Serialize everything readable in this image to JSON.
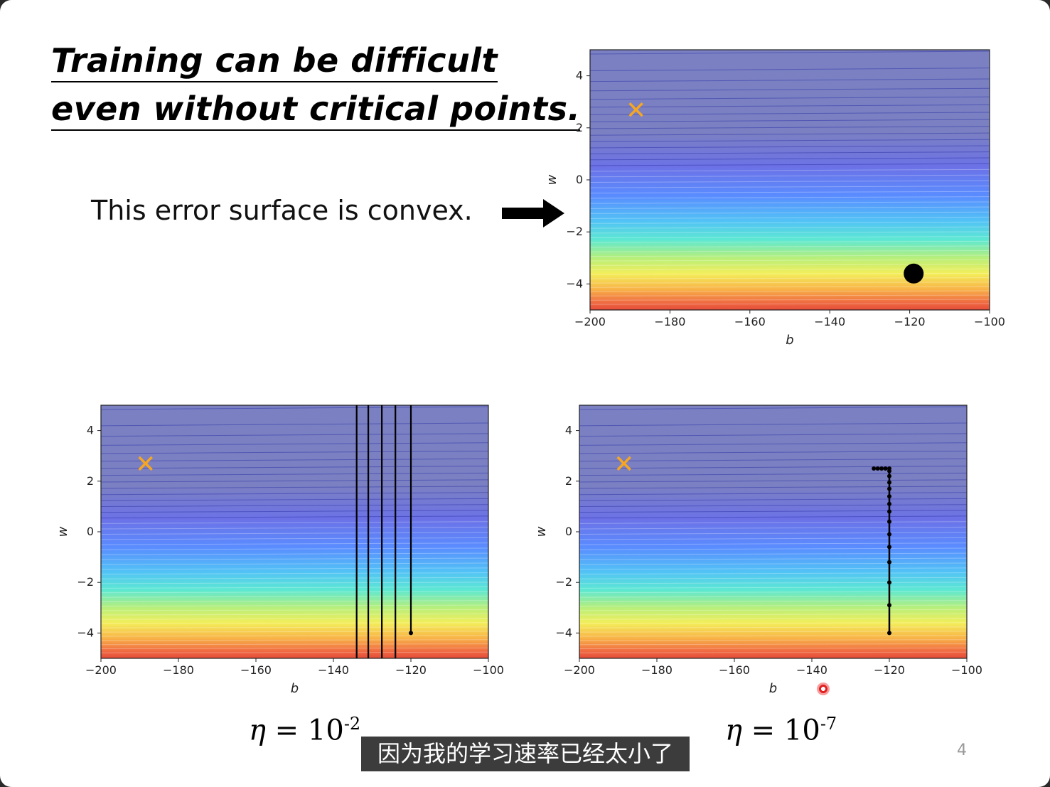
{
  "slide": {
    "title_line1": "Training can be difficult",
    "title_line2": "even without critical points.",
    "convex_text": "This error surface is convex.",
    "arrow_icon": "right-arrow-icon",
    "page_number": "4"
  },
  "eta_left": {
    "symbol": "η",
    "eq": " = 10",
    "exp": "-2"
  },
  "eta_right": {
    "symbol": "η",
    "eq": " = 10",
    "exp": "-7"
  },
  "subtitle": "因为我的学习速率已经太小了",
  "colors": {
    "target_marker": "#f5a623",
    "path": "#000000",
    "cursor": "#e02020"
  },
  "chart_data": [
    {
      "type": "heatmap",
      "id": "top",
      "title": "",
      "xlabel": "b",
      "ylabel": "w",
      "xlim": [
        -200,
        -100
      ],
      "ylim": [
        -5,
        5
      ],
      "xticks": [
        "−200",
        "−180",
        "−160",
        "−140",
        "−120",
        "−100"
      ],
      "yticks": [
        "4",
        "2",
        "0",
        "−2",
        "−4"
      ],
      "target": {
        "b": -188.5,
        "w": 2.7
      },
      "start": {
        "b": -119,
        "w": -3.6
      },
      "path": []
    },
    {
      "type": "heatmap",
      "id": "bottom-left",
      "title": "",
      "xlabel": "b",
      "ylabel": "w",
      "xlim": [
        -200,
        -100
      ],
      "ylim": [
        -5,
        5
      ],
      "xticks": [
        "−200",
        "−180",
        "−160",
        "−140",
        "−120",
        "−100"
      ],
      "yticks": [
        "4",
        "2",
        "0",
        "−2",
        "−4"
      ],
      "target": {
        "b": -188.5,
        "w": 2.7
      },
      "start": {
        "b": -120,
        "w": -4
      },
      "vertical_lines_b": [
        -134,
        -131,
        -127.5,
        -124,
        -120
      ]
    },
    {
      "type": "heatmap",
      "id": "bottom-right",
      "title": "",
      "xlabel": "b",
      "ylabel": "w",
      "xlim": [
        -200,
        -100
      ],
      "ylim": [
        -5,
        5
      ],
      "xticks": [
        "−200",
        "−180",
        "−160",
        "−140",
        "−120",
        "−100"
      ],
      "yticks": [
        "4",
        "2",
        "0",
        "−2",
        "−4"
      ],
      "target": {
        "b": -188.5,
        "w": 2.7
      },
      "path": [
        {
          "b": -120,
          "w": -4
        },
        {
          "b": -120,
          "w": -2.9
        },
        {
          "b": -120,
          "w": -2.0
        },
        {
          "b": -120,
          "w": -1.2
        },
        {
          "b": -120,
          "w": -0.6
        },
        {
          "b": -120,
          "w": -0.1
        },
        {
          "b": -120,
          "w": 0.4
        },
        {
          "b": -120,
          "w": 0.8
        },
        {
          "b": -120,
          "w": 1.1
        },
        {
          "b": -120,
          "w": 1.4
        },
        {
          "b": -120,
          "w": 1.7
        },
        {
          "b": -120,
          "w": 1.95
        },
        {
          "b": -120,
          "w": 2.2
        },
        {
          "b": -120,
          "w": 2.4
        },
        {
          "b": -120,
          "w": 2.5
        },
        {
          "b": -121,
          "w": 2.5
        },
        {
          "b": -122,
          "w": 2.5
        },
        {
          "b": -123,
          "w": 2.5
        },
        {
          "b": -124,
          "w": 2.5
        }
      ]
    }
  ]
}
